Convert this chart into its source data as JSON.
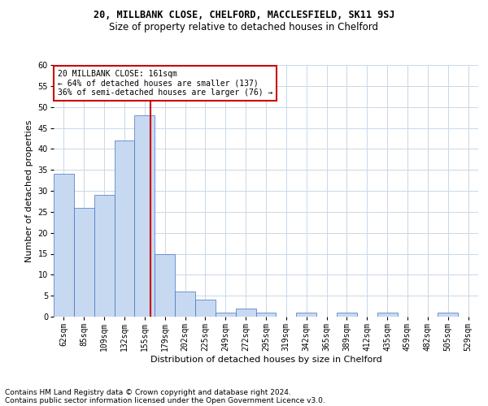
{
  "title1": "20, MILLBANK CLOSE, CHELFORD, MACCLESFIELD, SK11 9SJ",
  "title2": "Size of property relative to detached houses in Chelford",
  "xlabel": "Distribution of detached houses by size in Chelford",
  "ylabel": "Number of detached properties",
  "categories": [
    "62sqm",
    "85sqm",
    "109sqm",
    "132sqm",
    "155sqm",
    "179sqm",
    "202sqm",
    "225sqm",
    "249sqm",
    "272sqm",
    "295sqm",
    "319sqm",
    "342sqm",
    "365sqm",
    "389sqm",
    "412sqm",
    "435sqm",
    "459sqm",
    "482sqm",
    "505sqm",
    "529sqm"
  ],
  "values": [
    34,
    26,
    29,
    42,
    48,
    15,
    6,
    4,
    1,
    2,
    1,
    0,
    1,
    0,
    1,
    0,
    1,
    0,
    0,
    1,
    0
  ],
  "bar_color": "#c6d9f0",
  "bar_edge_color": "#4472c4",
  "ylim": [
    0,
    60
  ],
  "yticks": [
    0,
    5,
    10,
    15,
    20,
    25,
    30,
    35,
    40,
    45,
    50,
    55,
    60
  ],
  "vline_x": 4.3,
  "vline_color": "#cc0000",
  "annotation_text": "20 MILLBANK CLOSE: 161sqm\n← 64% of detached houses are smaller (137)\n36% of semi-detached houses are larger (76) →",
  "annotation_box_color": "#ffffff",
  "annotation_box_edge": "#cc0000",
  "footnote1": "Contains HM Land Registry data © Crown copyright and database right 2024.",
  "footnote2": "Contains public sector information licensed under the Open Government Licence v3.0.",
  "bg_color": "#ffffff",
  "grid_color": "#c8d8e8",
  "title1_fontsize": 8.5,
  "title2_fontsize": 8.5,
  "axis_fontsize": 7,
  "xlabel_fontsize": 8,
  "ylabel_fontsize": 8,
  "footnote_fontsize": 6.5,
  "annotation_fontsize": 7
}
